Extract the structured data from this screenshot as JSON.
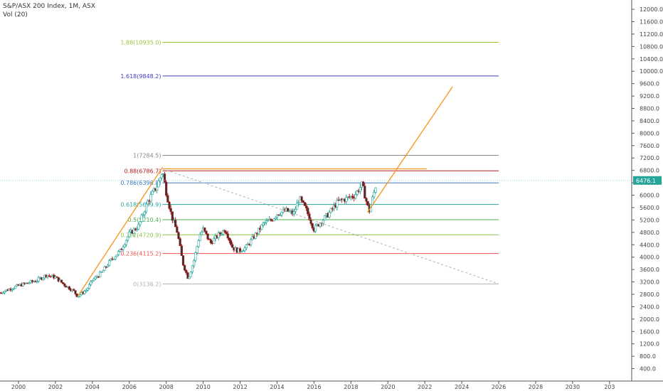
{
  "header": {
    "title": "S&P/ASX 200 Index, 1M, ASX",
    "subtitle": "Vol (20)"
  },
  "colors": {
    "candle_up": "#26a69a",
    "candle_down": "#b71c1c",
    "candle_body_up": "#ffffff",
    "candle_body_down": "#333333",
    "trend": "#f7931a",
    "diagonal": "#b0b0b0"
  },
  "chart_data": {
    "type": "candlestick",
    "title": "S&P/ASX 200 Index, 1M, ASX",
    "xlim": [
      1999,
      2033.2
    ],
    "ylim": [
      0,
      12300
    ],
    "x_ticks": [
      "2000",
      "2002",
      "2004",
      "2006",
      "2008",
      "2010",
      "2012",
      "2014",
      "2016",
      "2018",
      "2020",
      "2022",
      "2024",
      "2026",
      "2028",
      "2030",
      "203"
    ],
    "y_ticks": [
      "400.0",
      "800.0",
      "1200.0",
      "1600.0",
      "2000.0",
      "2400.0",
      "2800.0",
      "3200.0",
      "3600.0",
      "4000.0",
      "4400.0",
      "4800.0",
      "5200.0",
      "5600.0",
      "6000.0",
      "6400.0",
      "6800.0",
      "7200.0",
      "7600.0",
      "8000.0",
      "8400.0",
      "8800.0",
      "9200.0",
      "9600.0",
      "10000.0",
      "10400.0",
      "10800.0",
      "11200.0",
      "11600.0",
      "12000.0"
    ],
    "last_price": {
      "label": "6476.1",
      "value": 6476.1
    },
    "price_key_points": [
      [
        1999.0,
        2850
      ],
      [
        2000.0,
        3080
      ],
      [
        2001.0,
        3250
      ],
      [
        2001.5,
        3420
      ],
      [
        2002.0,
        3350
      ],
      [
        2002.5,
        3100
      ],
      [
        2003.0,
        2900
      ],
      [
        2003.2,
        2730
      ],
      [
        2003.7,
        2950
      ],
      [
        2004.0,
        3250
      ],
      [
        2004.5,
        3500
      ],
      [
        2005.0,
        3900
      ],
      [
        2005.5,
        4200
      ],
      [
        2006.0,
        4750
      ],
      [
        2006.5,
        5000
      ],
      [
        2007.0,
        5800
      ],
      [
        2007.5,
        6300
      ],
      [
        2007.8,
        6786
      ],
      [
        2008.0,
        6100
      ],
      [
        2008.3,
        5300
      ],
      [
        2008.6,
        4800
      ],
      [
        2008.9,
        3800
      ],
      [
        2009.2,
        3300
      ],
      [
        2009.5,
        3900
      ],
      [
        2009.8,
        4700
      ],
      [
        2010.0,
        4900
      ],
      [
        2010.4,
        4450
      ],
      [
        2010.8,
        4700
      ],
      [
        2011.2,
        4900
      ],
      [
        2011.6,
        4300
      ],
      [
        2011.9,
        4200
      ],
      [
        2012.3,
        4300
      ],
      [
        2012.8,
        4700
      ],
      [
        2013.3,
        5100
      ],
      [
        2013.7,
        5200
      ],
      [
        2014.0,
        5400
      ],
      [
        2014.5,
        5500
      ],
      [
        2014.9,
        5400
      ],
      [
        2015.2,
        5900
      ],
      [
        2015.6,
        5500
      ],
      [
        2016.0,
        4900
      ],
      [
        2016.3,
        5100
      ],
      [
        2016.8,
        5400
      ],
      [
        2017.3,
        5800
      ],
      [
        2017.8,
        5900
      ],
      [
        2018.2,
        6000
      ],
      [
        2018.6,
        6350
      ],
      [
        2018.9,
        5650
      ],
      [
        2019.0,
        5500
      ],
      [
        2019.3,
        6200
      ],
      [
        2019.4,
        6476
      ]
    ],
    "fib_levels": [
      {
        "label": "0(3136.2)",
        "value": 3136.2,
        "color": "#b0b0b0"
      },
      {
        "label": "0.236(4115.2)",
        "value": 4115.2,
        "color": "#ef5350"
      },
      {
        "label": "0.382(4720.9)",
        "value": 4720.9,
        "color": "#8bc34a"
      },
      {
        "label": "0.5(5210.4)",
        "value": 5210.4,
        "color": "#4caf50"
      },
      {
        "label": "0.618(5699.9)",
        "value": 5699.9,
        "color": "#26a69a"
      },
      {
        "label": "0.786(6396.8)",
        "value": 6396.8,
        "color": "#3d7ac2"
      },
      {
        "label": "0.88(6786.7)",
        "value": 6786.7,
        "color": "#b71c1c"
      },
      {
        "label": "1(7284.5)",
        "value": 7284.5,
        "color": "#888888"
      },
      {
        "label": "1.618(9848.2)",
        "value": 9848.2,
        "color": "#3f3fc8"
      },
      {
        "label": "1.88(10935.0)",
        "value": 10935.0,
        "color": "#9bc53d"
      }
    ],
    "trend_lines": [
      {
        "from": [
          2003.2,
          2730
        ],
        "to": [
          2007.8,
          6900
        ]
      },
      {
        "from": [
          2007.8,
          6850
        ],
        "to": [
          2022.1,
          6850
        ]
      },
      {
        "from": [
          2018.9,
          5450
        ],
        "to": [
          2023.5,
          9500
        ]
      }
    ],
    "diagonal_line": {
      "from": [
        2007.8,
        6850
      ],
      "to": [
        2026.0,
        3136.2
      ]
    }
  }
}
